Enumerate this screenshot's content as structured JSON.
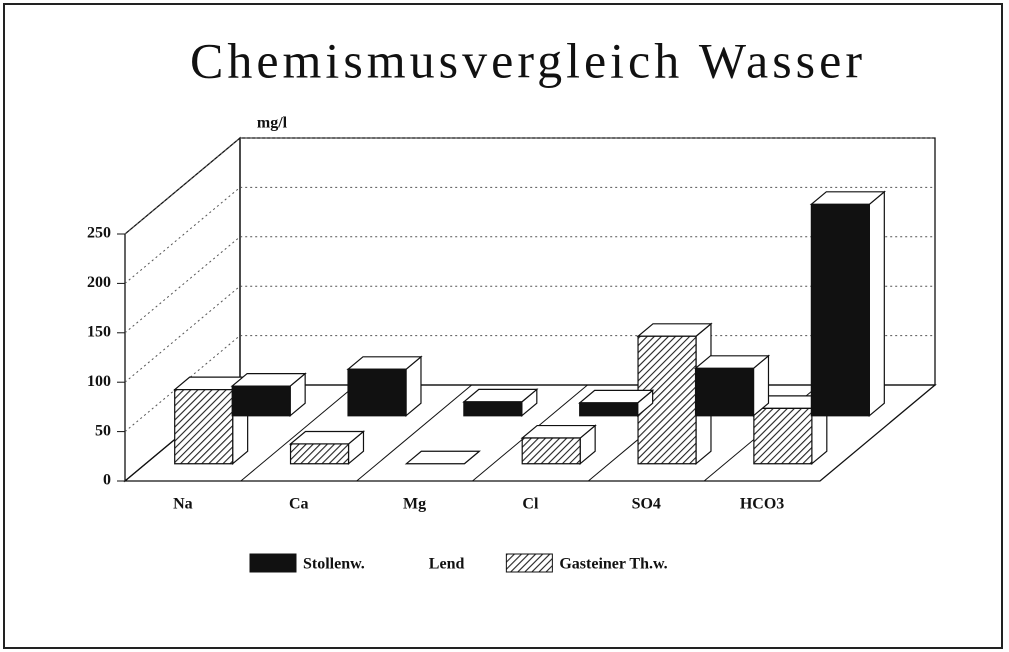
{
  "chart_data": {
    "type": "bar3d",
    "title": "Chemismusvergleich Wasser",
    "y_label": "mg/l",
    "categories": [
      "Na",
      "Ca",
      "Mg",
      "Cl",
      "SO4",
      "HCO3"
    ],
    "series": [
      {
        "name": "Stollenw. Lend",
        "color": "#111111",
        "values": [
          30,
          47,
          14,
          13,
          48,
          214
        ]
      },
      {
        "name": "Gasteiner Th.w.",
        "color": "hatched",
        "values": [
          75,
          20,
          0,
          26,
          129,
          56
        ]
      }
    ],
    "ylim": [
      0,
      250
    ],
    "yticks": [
      0,
      50,
      100,
      150,
      200,
      250
    ],
    "grid": true
  }
}
